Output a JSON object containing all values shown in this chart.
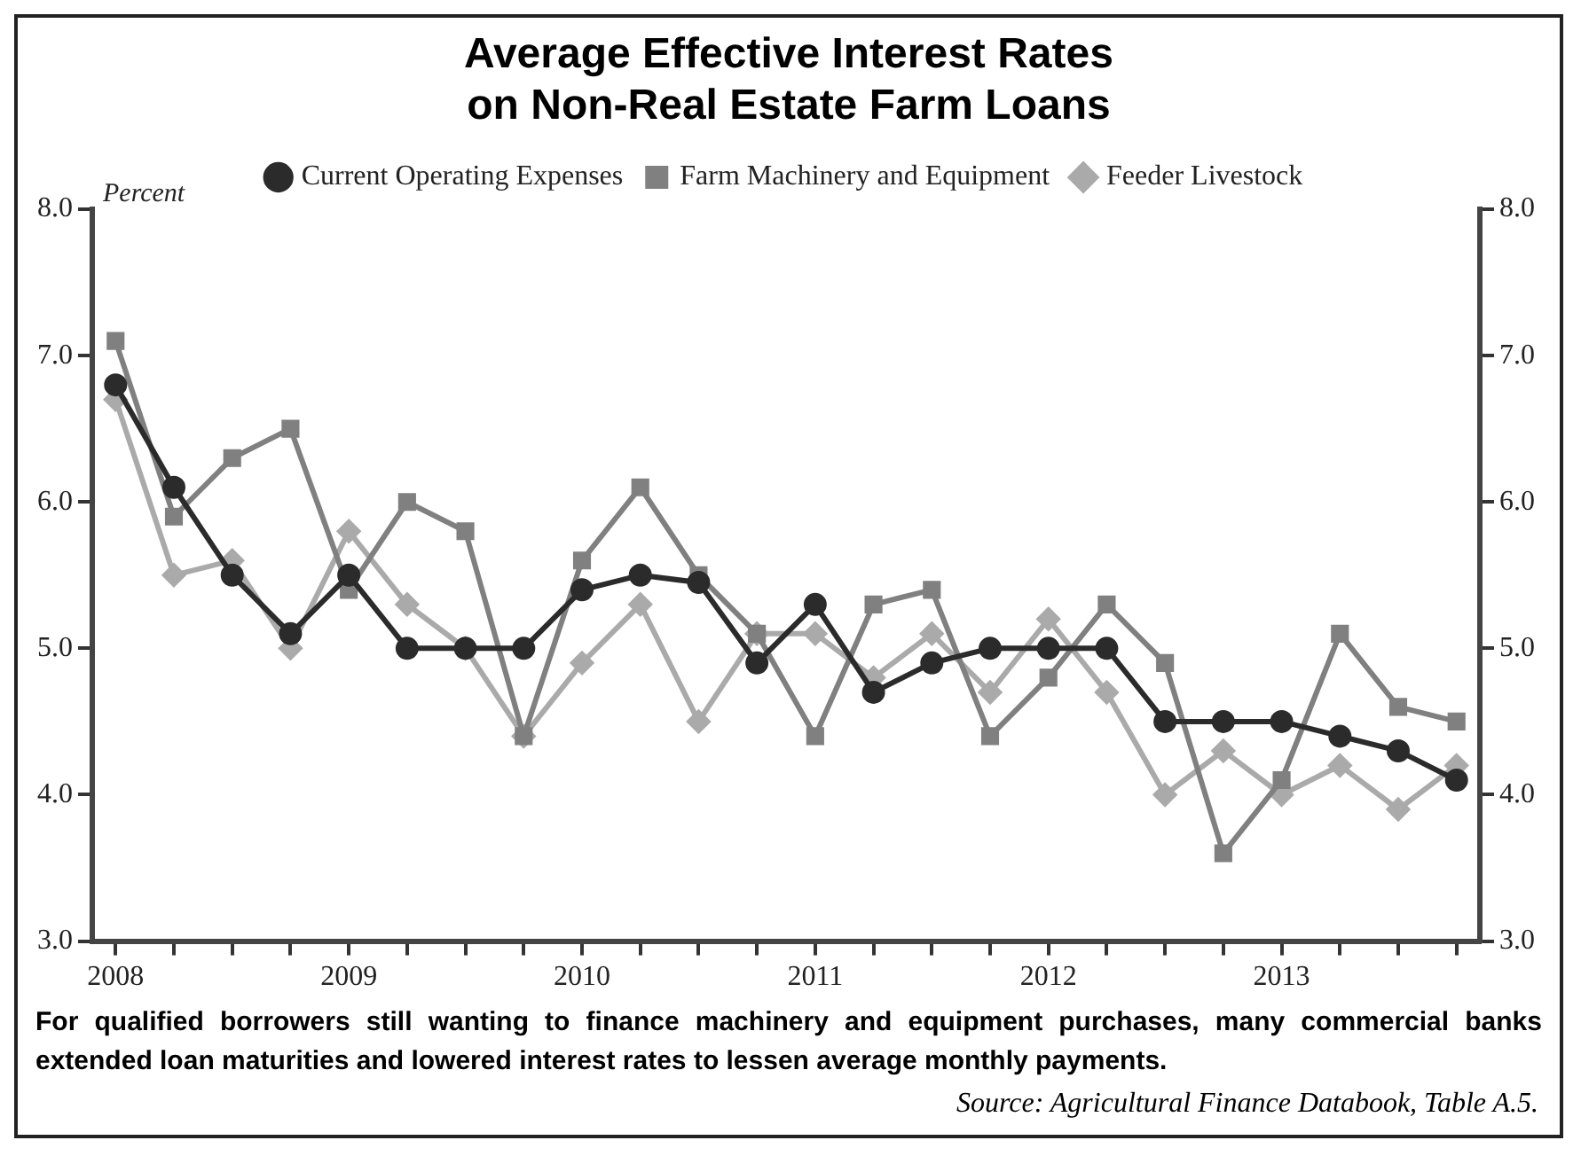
{
  "chart_data": {
    "type": "line",
    "title": "Average Effective Interest Rates\non Non-Real Estate Farm Loans",
    "ylabel": "Percent",
    "x": [
      2008,
      2008.25,
      2008.5,
      2008.75,
      2009,
      2009.25,
      2009.5,
      2009.75,
      2010,
      2010.25,
      2010.5,
      2010.75,
      2011,
      2011.25,
      2011.5,
      2011.75,
      2012,
      2012.25,
      2012.5,
      2012.75,
      2013,
      2013.25,
      2013.5,
      2013.75
    ],
    "series": [
      {
        "name": "Current Operating Expenses",
        "color": "#2b2b2b",
        "marker": "circle",
        "values": [
          6.8,
          6.1,
          5.5,
          5.1,
          5.5,
          5.0,
          5.0,
          5.0,
          5.4,
          5.5,
          5.45,
          4.9,
          5.3,
          4.7,
          4.9,
          5.0,
          5.0,
          5.0,
          4.5,
          4.5,
          4.5,
          4.4,
          4.3,
          4.1
        ]
      },
      {
        "name": "Farm Machinery and Equipment",
        "color": "#808080",
        "marker": "square",
        "values": [
          7.1,
          5.9,
          6.3,
          6.5,
          5.4,
          6.0,
          5.8,
          4.4,
          5.6,
          6.1,
          5.5,
          5.1,
          4.4,
          5.3,
          5.4,
          4.4,
          4.8,
          5.3,
          4.9,
          3.6,
          4.1,
          5.1,
          4.6,
          4.5
        ]
      },
      {
        "name": "Feeder Livestock",
        "color": "#aaaaaa",
        "marker": "diamond",
        "values": [
          6.7,
          5.5,
          5.6,
          5.0,
          5.8,
          5.3,
          5.0,
          4.4,
          4.9,
          5.3,
          4.5,
          5.1,
          5.1,
          4.8,
          5.1,
          4.7,
          5.2,
          4.7,
          4.0,
          4.3,
          4.0,
          4.2,
          3.9,
          4.2
        ]
      }
    ],
    "xlim": [
      2007.9,
      2013.85
    ],
    "xticks": [
      2008,
      {
        "value": 2008.25,
        "label": null
      },
      {
        "value": 2008.5,
        "label": null
      },
      {
        "value": 2008.75,
        "label": null
      },
      2009,
      {
        "value": 2009.25,
        "label": null
      },
      {
        "value": 2009.5,
        "label": null
      },
      {
        "value": 2009.75,
        "label": null
      },
      2010,
      {
        "value": 2010.25,
        "label": null
      },
      {
        "value": 2010.5,
        "label": null
      },
      {
        "value": 2010.75,
        "label": null
      },
      2011,
      {
        "value": 2011.25,
        "label": null
      },
      {
        "value": 2011.5,
        "label": null
      },
      {
        "value": 2011.75,
        "label": null
      },
      2012,
      {
        "value": 2012.25,
        "label": null
      },
      {
        "value": 2012.5,
        "label": null
      },
      {
        "value": 2012.75,
        "label": null
      },
      2013,
      {
        "value": 2013.25,
        "label": null
      },
      {
        "value": 2013.5,
        "label": null
      },
      {
        "value": 2013.75,
        "label": null
      }
    ],
    "ylim": [
      3,
      8
    ],
    "yticks": [
      {
        "value": 3,
        "label": "3.0"
      },
      {
        "value": 4,
        "label": "4.0"
      },
      {
        "value": 5,
        "label": "5.0"
      },
      {
        "value": 6,
        "label": "6.0"
      },
      {
        "value": 7,
        "label": "7.0"
      },
      {
        "value": 8,
        "label": "8.0"
      }
    ],
    "y2lim": [
      3,
      8
    ],
    "y2ticks": [
      {
        "value": 3,
        "label": "3.0"
      },
      {
        "value": 4,
        "label": "4.0"
      },
      {
        "value": 5,
        "label": "5.0"
      },
      {
        "value": 6,
        "label": "6.0"
      },
      {
        "value": 7,
        "label": "7.0"
      },
      {
        "value": 8,
        "label": "8.0"
      }
    ],
    "grid": false,
    "legend": "top",
    "line_style": "solid",
    "annotations": [
      "For qualified borrowers still wanting to finance machinery and equipment purchases, many commercial banks extended loan maturities and lowered interest rates to lessen average monthly payments.",
      "Source: Agricultural Finance Databook, Table A.5."
    ]
  }
}
